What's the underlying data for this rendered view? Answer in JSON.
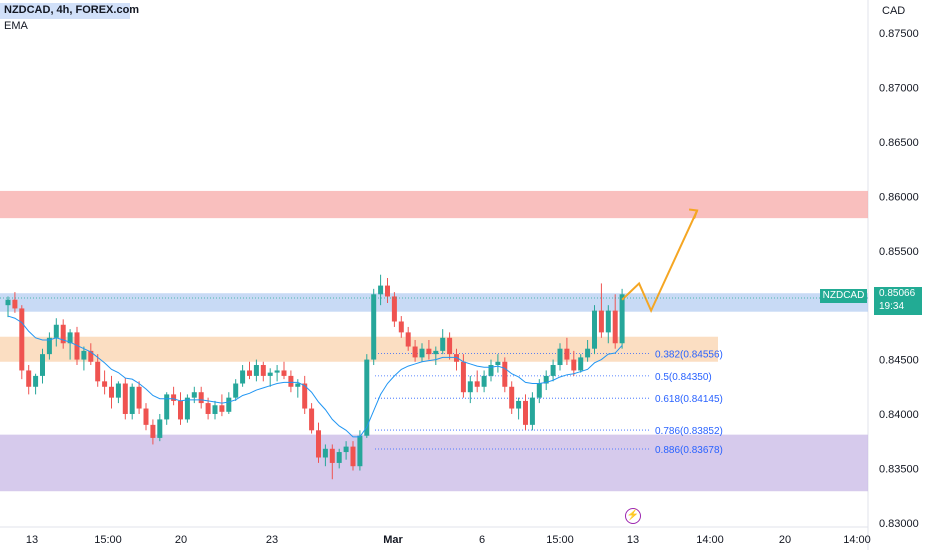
{
  "header": {
    "symbol_title": "NZDCAD, 4h, FOREX.com",
    "indicator": "EMA"
  },
  "price_axis": {
    "currency": "CAD",
    "ticks": [
      "0.87500",
      "0.87000",
      "0.86500",
      "0.86000",
      "0.85500",
      "0.85000",
      "0.84500",
      "0.84000",
      "0.83500",
      "0.83000"
    ]
  },
  "time_axis": {
    "ticks": [
      "13",
      "15:00",
      "20",
      "23",
      "Mar",
      "6",
      "15:00",
      "13",
      "14:00",
      "20",
      "14:00"
    ]
  },
  "last_price": {
    "symbol": "NZDCAD",
    "price": "0.85066",
    "countdown": "19:34"
  },
  "fib_levels": [
    {
      "ratio": "0.382",
      "price": "0.84556",
      "label": "0.382(0.84556)"
    },
    {
      "ratio": "0.5",
      "price": "0.84350",
      "label": "0.5(0.84350)"
    },
    {
      "ratio": "0.618",
      "price": "0.84145",
      "label": "0.618(0.84145)"
    },
    {
      "ratio": "0.786",
      "price": "0.83852",
      "label": "0.786(0.83852)"
    },
    {
      "ratio": "0.886",
      "price": "0.83678",
      "label": "0.886(0.83678)"
    }
  ],
  "zones": [
    {
      "name": "red-zone",
      "top": 0.8605,
      "bottom": 0.858,
      "color": "#f7a9a8"
    },
    {
      "name": "blue-zone",
      "top": 0.8511,
      "bottom": 0.8494,
      "color": "#b5cdf2"
    },
    {
      "name": "orange-zone",
      "top": 0.8471,
      "bottom": 0.8448,
      "color": "#fad3ad"
    },
    {
      "name": "purple-zone",
      "top": 0.8381,
      "bottom": 0.8329,
      "color": "#c8b8e6"
    }
  ],
  "colors": {
    "up": "#26a69a",
    "down": "#ef5350",
    "ema": "#2196f3",
    "projection": "#f5a623",
    "accent": "#22ab94",
    "fib": "#2962ff"
  },
  "chart_data": {
    "type": "candlestick",
    "ylim": [
      0.83,
      0.878
    ],
    "candles": [
      [
        0.85,
        0.8508,
        0.8489,
        0.8505
      ],
      [
        0.8505,
        0.8512,
        0.8493,
        0.8497
      ],
      [
        0.8497,
        0.85,
        0.8432,
        0.844
      ],
      [
        0.844,
        0.8445,
        0.8418,
        0.8425
      ],
      [
        0.8425,
        0.8437,
        0.8418,
        0.8435
      ],
      [
        0.8435,
        0.846,
        0.8428,
        0.8455
      ],
      [
        0.8455,
        0.8475,
        0.845,
        0.847
      ],
      [
        0.847,
        0.8488,
        0.8462,
        0.8482
      ],
      [
        0.8482,
        0.8487,
        0.846,
        0.8465
      ],
      [
        0.8465,
        0.8478,
        0.845,
        0.8475
      ],
      [
        0.8475,
        0.848,
        0.8445,
        0.845
      ],
      [
        0.845,
        0.8462,
        0.844,
        0.8458
      ],
      [
        0.8458,
        0.8465,
        0.8445,
        0.8448
      ],
      [
        0.8448,
        0.8455,
        0.8425,
        0.843
      ],
      [
        0.843,
        0.844,
        0.8418,
        0.8425
      ],
      [
        0.8425,
        0.8435,
        0.8405,
        0.8415
      ],
      [
        0.8415,
        0.843,
        0.841,
        0.8428
      ],
      [
        0.8428,
        0.8433,
        0.8395,
        0.84
      ],
      [
        0.84,
        0.8428,
        0.8395,
        0.8425
      ],
      [
        0.8425,
        0.843,
        0.84,
        0.8405
      ],
      [
        0.8405,
        0.841,
        0.8385,
        0.839
      ],
      [
        0.839,
        0.8395,
        0.8372,
        0.8378
      ],
      [
        0.8378,
        0.84,
        0.8375,
        0.8395
      ],
      [
        0.8395,
        0.842,
        0.839,
        0.8418
      ],
      [
        0.8418,
        0.8425,
        0.8408,
        0.8412
      ],
      [
        0.8412,
        0.842,
        0.839,
        0.8395
      ],
      [
        0.8395,
        0.8418,
        0.8392,
        0.8415
      ],
      [
        0.8415,
        0.8425,
        0.841,
        0.842
      ],
      [
        0.842,
        0.8425,
        0.8405,
        0.841
      ],
      [
        0.841,
        0.8415,
        0.8395,
        0.84
      ],
      [
        0.84,
        0.8412,
        0.8395,
        0.8408
      ],
      [
        0.8408,
        0.8418,
        0.8398,
        0.8402
      ],
      [
        0.8402,
        0.842,
        0.84,
        0.8415
      ],
      [
        0.8415,
        0.8432,
        0.8412,
        0.8428
      ],
      [
        0.8428,
        0.8445,
        0.8425,
        0.844
      ],
      [
        0.844,
        0.8448,
        0.8432,
        0.8435
      ],
      [
        0.8435,
        0.845,
        0.843,
        0.8445
      ],
      [
        0.8445,
        0.8448,
        0.843,
        0.8435
      ],
      [
        0.8435,
        0.8442,
        0.8425,
        0.8438
      ],
      [
        0.8438,
        0.8445,
        0.843,
        0.844
      ],
      [
        0.844,
        0.8448,
        0.8432,
        0.8435
      ],
      [
        0.8435,
        0.844,
        0.842,
        0.8425
      ],
      [
        0.8425,
        0.8432,
        0.8415,
        0.8428
      ],
      [
        0.8428,
        0.8435,
        0.84,
        0.8405
      ],
      [
        0.8405,
        0.841,
        0.8382,
        0.8385
      ],
      [
        0.8385,
        0.8392,
        0.8355,
        0.836
      ],
      [
        0.836,
        0.8372,
        0.8352,
        0.8368
      ],
      [
        0.8368,
        0.8372,
        0.834,
        0.8355
      ],
      [
        0.8355,
        0.8368,
        0.835,
        0.8365
      ],
      [
        0.8365,
        0.8375,
        0.8358,
        0.837
      ],
      [
        0.837,
        0.8375,
        0.8348,
        0.8352
      ],
      [
        0.8352,
        0.8385,
        0.8348,
        0.838
      ],
      [
        0.838,
        0.8455,
        0.8378,
        0.845
      ],
      [
        0.845,
        0.8515,
        0.8445,
        0.851
      ],
      [
        0.851,
        0.8528,
        0.85,
        0.8518
      ],
      [
        0.8518,
        0.8525,
        0.8502,
        0.8508
      ],
      [
        0.8508,
        0.8512,
        0.848,
        0.8485
      ],
      [
        0.8485,
        0.849,
        0.847,
        0.8475
      ],
      [
        0.8475,
        0.848,
        0.8458,
        0.8462
      ],
      [
        0.8462,
        0.8468,
        0.8448,
        0.8452
      ],
      [
        0.8452,
        0.8465,
        0.8448,
        0.846
      ],
      [
        0.846,
        0.8468,
        0.845,
        0.8455
      ],
      [
        0.8455,
        0.8462,
        0.8445,
        0.8458
      ],
      [
        0.8458,
        0.8478,
        0.8455,
        0.847
      ],
      [
        0.847,
        0.8475,
        0.845,
        0.8455
      ],
      [
        0.8455,
        0.846,
        0.844,
        0.8448
      ],
      [
        0.8448,
        0.8455,
        0.8415,
        0.842
      ],
      [
        0.842,
        0.8435,
        0.841,
        0.843
      ],
      [
        0.843,
        0.844,
        0.842,
        0.8425
      ],
      [
        0.8425,
        0.844,
        0.842,
        0.8435
      ],
      [
        0.8435,
        0.845,
        0.843,
        0.8445
      ],
      [
        0.8445,
        0.8455,
        0.8438,
        0.8448
      ],
      [
        0.8448,
        0.8452,
        0.842,
        0.8425
      ],
      [
        0.8425,
        0.843,
        0.84,
        0.8405
      ],
      [
        0.8405,
        0.8415,
        0.8395,
        0.8412
      ],
      [
        0.8412,
        0.8418,
        0.8385,
        0.839
      ],
      [
        0.839,
        0.842,
        0.8385,
        0.8415
      ],
      [
        0.8415,
        0.8432,
        0.841,
        0.8428
      ],
      [
        0.8428,
        0.844,
        0.8422,
        0.8435
      ],
      [
        0.8435,
        0.845,
        0.843,
        0.8445
      ],
      [
        0.8445,
        0.8465,
        0.844,
        0.846
      ],
      [
        0.846,
        0.847,
        0.8445,
        0.845
      ],
      [
        0.845,
        0.8458,
        0.8435,
        0.844
      ],
      [
        0.844,
        0.8455,
        0.8438,
        0.8452
      ],
      [
        0.8452,
        0.8468,
        0.8448,
        0.846
      ],
      [
        0.846,
        0.85,
        0.8455,
        0.8495
      ],
      [
        0.8495,
        0.852,
        0.847,
        0.8475
      ],
      [
        0.8475,
        0.85,
        0.8465,
        0.8495
      ],
      [
        0.8495,
        0.851,
        0.846,
        0.8465
      ],
      [
        0.8465,
        0.8515,
        0.846,
        0.851
      ]
    ],
    "ema": [
      0.849,
      0.8488,
      0.8484,
      0.8476,
      0.847,
      0.8468,
      0.8468,
      0.847,
      0.8468,
      0.8466,
      0.8463,
      0.846,
      0.8457,
      0.8452,
      0.8447,
      0.8441,
      0.8438,
      0.8433,
      0.8432,
      0.8428,
      0.8423,
      0.8417,
      0.8414,
      0.8414,
      0.8414,
      0.8412,
      0.8413,
      0.8413,
      0.8413,
      0.8412,
      0.8411,
      0.841,
      0.8411,
      0.8413,
      0.8417,
      0.8419,
      0.8422,
      0.8424,
      0.8426,
      0.8428,
      0.8429,
      0.8429,
      0.8429,
      0.8426,
      0.842,
      0.8411,
      0.8404,
      0.8395,
      0.8389,
      0.8385,
      0.8379,
      0.8379,
      0.8388,
      0.8403,
      0.8418,
      0.8428,
      0.8435,
      0.8441,
      0.8444,
      0.8446,
      0.8448,
      0.8449,
      0.845,
      0.8452,
      0.8452,
      0.8452,
      0.8448,
      0.8446,
      0.8444,
      0.8443,
      0.8443,
      0.8444,
      0.8442,
      0.8437,
      0.8434,
      0.8429,
      0.8428,
      0.8428,
      0.8429,
      0.8431,
      0.8434,
      0.8436,
      0.8437,
      0.8439,
      0.8441,
      0.8447,
      0.845,
      0.8455,
      0.8456,
      0.8463
    ],
    "projection": [
      [
        0.8505,
        0.852
      ],
      [
        0.852,
        0.8495
      ],
      [
        0.8495,
        0.8587
      ]
    ]
  }
}
